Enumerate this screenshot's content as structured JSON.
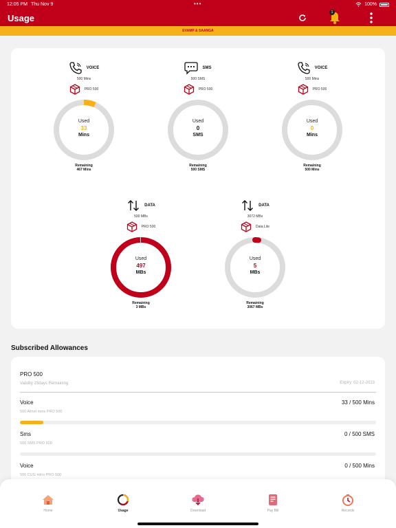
{
  "status_bar": {
    "time": "12:05 PM",
    "date": "Thu Nov 9",
    "dots": "•••",
    "battery": "100%"
  },
  "header": {
    "title": "Usage",
    "bell_badge": "1",
    "accent": "#c0001a"
  },
  "banner": {
    "text": "EVAMP & SAANGA"
  },
  "gauges": [
    {
      "type": "VOICE",
      "total": "500 Mins",
      "plan": "PRO 500",
      "used_label": "Used",
      "used": "33",
      "unit": "Mins",
      "remaining_label": "Remaining",
      "remaining": "467 Mins",
      "fraction": 0.066,
      "color": "#f6b01a"
    },
    {
      "type": "SMS",
      "total": "500 SMS",
      "plan": "PRO 500",
      "used_label": "Used",
      "used": "0",
      "unit": "SMS",
      "remaining_label": "Remaining",
      "remaining": "500 SMS",
      "fraction": 0,
      "color": "#111111"
    },
    {
      "type": "VOICE",
      "total": "500 Mins",
      "plan": "PRO 500",
      "used_label": "Used",
      "used": "0",
      "unit": "Mins",
      "remaining_label": "Remaining",
      "remaining": "500 Mins",
      "fraction": 0,
      "color": "#f6b01a"
    },
    {
      "type": "DATA",
      "total": "500 MBs",
      "plan": "PRO 500",
      "used_label": "Used",
      "used": "497",
      "unit": "MBs",
      "remaining_label": "Remaining",
      "remaining": "3 MBs",
      "fraction": 0.994,
      "color": "#c0001a"
    },
    {
      "type": "DATA",
      "total": "3072 MBs",
      "plan": "Data Lite",
      "used_label": "Used",
      "used": "5",
      "unit": "MBs",
      "remaining_label": "Remaining",
      "remaining": "3067 MBs",
      "fraction": 0.0016,
      "color": "#c0001a"
    }
  ],
  "subscribed": {
    "title": "Subscribed Allowances",
    "plan_name": "PRO 500",
    "validity": "Validity 23days Remaining",
    "expiry": "Expiry: 02-12-2023",
    "allowances": [
      {
        "name": "Voice",
        "value": "33 / 500 Mins",
        "desc": "500 Allnet mins PRO 500",
        "progress": 0.066
      },
      {
        "name": "Sms",
        "value": "0 / 500 SMS",
        "desc": "500 SMS PRO 500",
        "progress": 0
      },
      {
        "name": "Voice",
        "value": "0 / 500 Mins",
        "desc": "500 CUG mins PRO 500",
        "progress": 0
      }
    ]
  },
  "nav": [
    {
      "label": "Home",
      "icon": "home-icon"
    },
    {
      "label": "Usage",
      "icon": "usage-icon"
    },
    {
      "label": "Download",
      "icon": "cloud-download-icon"
    },
    {
      "label": "Pay Bill",
      "icon": "bill-icon"
    },
    {
      "label": "Records",
      "icon": "records-icon"
    }
  ]
}
